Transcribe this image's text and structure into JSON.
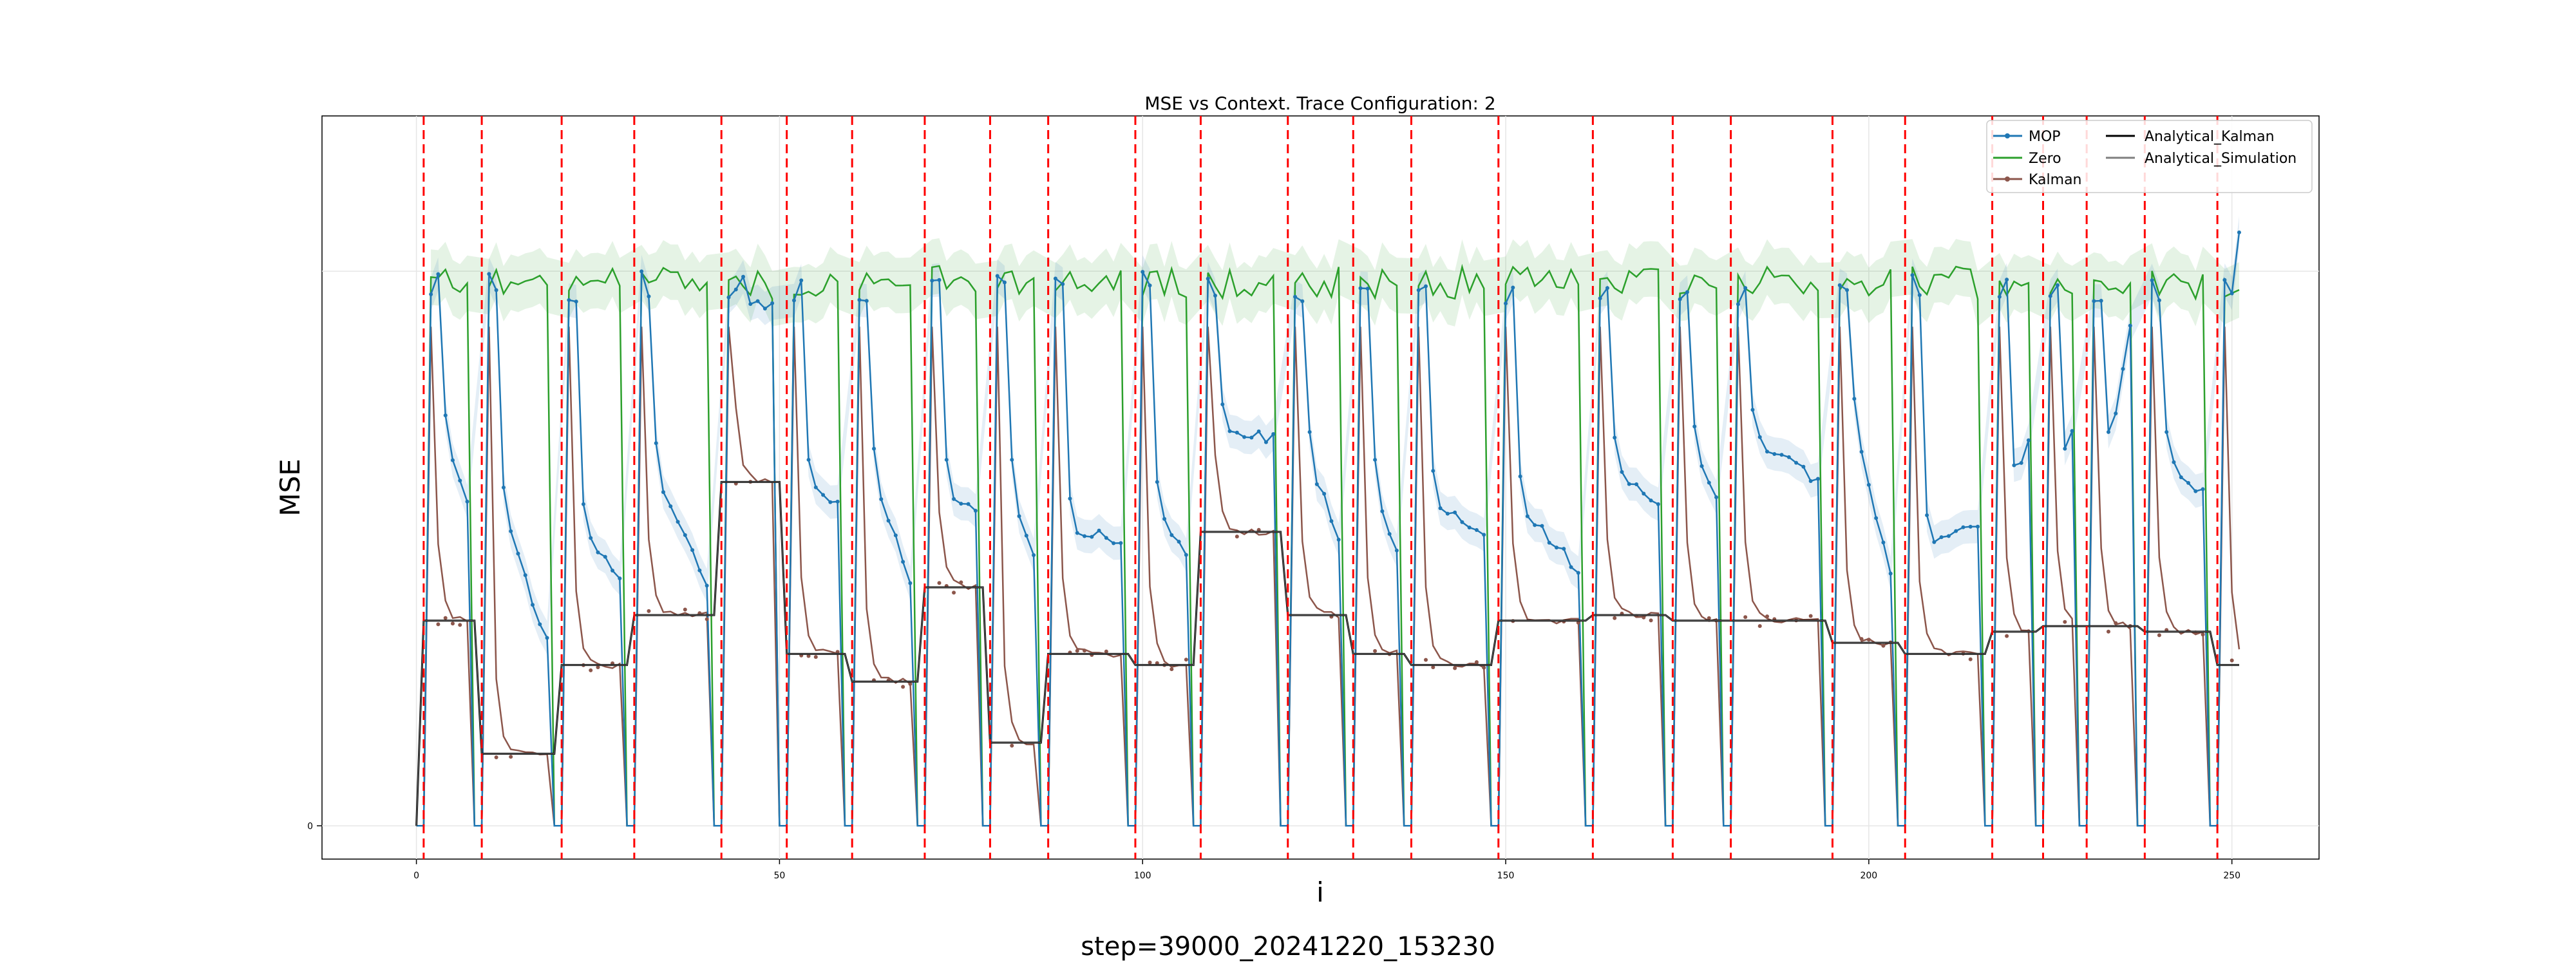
{
  "chart_data": {
    "type": "line",
    "title": "MSE vs Context. Trace Configuration: 2",
    "xlabel": "i",
    "ylabel": "MSE",
    "xlim": [
      -13,
      262
    ],
    "ylim": [
      -0.06,
      1.28
    ],
    "x_ticks": [
      0,
      50,
      100,
      150,
      200,
      250
    ],
    "y_ticks": [
      {
        "value": 0,
        "label": "0"
      }
    ],
    "y_grid_extra": [
      1.0
    ],
    "grid": true,
    "legend_position": "top-right",
    "legend": [
      "MOP",
      "Zero",
      "Kalman",
      "Analytical_Kalman",
      "Analytical_Simulation"
    ],
    "segment_boundaries": [
      1,
      9,
      20,
      30,
      42,
      51,
      60,
      70,
      79,
      87,
      99,
      108,
      120,
      129,
      137,
      149,
      162,
      173,
      181,
      195,
      205,
      217,
      224,
      230,
      238,
      248
    ],
    "segment_levels": [
      0.37,
      0.13,
      0.29,
      0.38,
      0.62,
      0.31,
      0.26,
      0.43,
      0.15,
      0.31,
      0.29,
      0.53,
      0.38,
      0.31,
      0.29,
      0.37,
      0.38,
      0.37,
      0.37,
      0.33,
      0.31,
      0.35,
      0.36,
      0.36,
      0.35,
      0.29
    ],
    "mop_plateau": [
      0.69,
      0.56,
      0.53,
      0.64,
      0.94,
      0.61,
      0.63,
      0.61,
      0.61,
      0.54,
      0.57,
      0.71,
      0.66,
      0.61,
      0.59,
      0.58,
      0.65,
      0.67,
      0.7,
      0.72,
      0.51,
      0.6,
      0.63,
      0.66,
      0.66,
      1.02
    ],
    "mop_end": [
      0.58,
      0.33,
      0.44,
      0.43,
      0.94,
      0.58,
      0.44,
      0.56,
      0.48,
      0.51,
      0.48,
      0.7,
      0.52,
      0.49,
      0.52,
      0.46,
      0.57,
      0.6,
      0.62,
      0.45,
      0.54,
      0.7,
      0.71,
      0.9,
      0.6,
      1.02
    ],
    "zero_level": 0.98,
    "series_colors": {
      "MOP": "#1f77b4",
      "Zero": "#2ca02c",
      "Kalman": "#8c564b",
      "Analytical_Kalman": "#000000",
      "Analytical_Simulation": "#7f7f7f",
      "boundary": "#ff0000"
    }
  },
  "caption": "step=39000_20241220_153230"
}
